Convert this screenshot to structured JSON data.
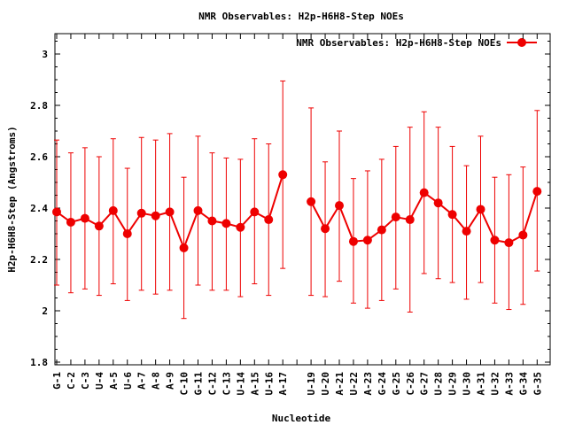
{
  "chart_data": {
    "type": "line",
    "title": "NMR Observables: H2p-H6H8-Step NOEs",
    "xlabel": "Nucleotide",
    "ylabel": "H2p-H6H8-Step (Angstroms)",
    "ylim": [
      1.8,
      3.05
    ],
    "yticks": [
      "1.8",
      "2",
      "2.2",
      "2.4",
      "2.6",
      "2.8",
      "3"
    ],
    "yticks_values": [
      1.8,
      2.0,
      2.2,
      2.4,
      2.6,
      2.8,
      3.0
    ],
    "legend": {
      "label": "NMR Observables: H2p-H6H8-Step NOEs",
      "placement": "top-right"
    },
    "grid": false,
    "series_color": "#ee0000",
    "categories": [
      "G-1",
      "C-2",
      "C-3",
      "U-4",
      "A-5",
      "U-6",
      "A-7",
      "A-8",
      "A-9",
      "C-10",
      "G-11",
      "C-12",
      "C-13",
      "U-14",
      "A-15",
      "U-16",
      "A-17",
      "",
      "U-19",
      "U-20",
      "A-21",
      "U-22",
      "A-23",
      "G-24",
      "G-25",
      "C-26",
      "G-27",
      "U-28",
      "U-29",
      "U-30",
      "A-31",
      "U-32",
      "A-33",
      "G-34",
      "G-35"
    ],
    "series": [
      {
        "name": "NMR Observables: H2p-H6H8-Step NOEs",
        "values": [
          2.385,
          2.345,
          2.36,
          2.33,
          2.39,
          2.3,
          2.38,
          2.37,
          2.385,
          2.245,
          2.39,
          2.35,
          2.34,
          2.325,
          2.385,
          2.355,
          2.53,
          null,
          2.425,
          2.32,
          2.41,
          2.27,
          2.275,
          2.315,
          2.365,
          2.355,
          2.46,
          2.42,
          2.375,
          2.31,
          2.395,
          2.275,
          2.265,
          2.295,
          2.465
        ],
        "err_low": [
          2.1,
          2.07,
          2.085,
          2.06,
          2.105,
          2.04,
          2.08,
          2.065,
          2.08,
          1.97,
          2.1,
          2.08,
          2.08,
          2.055,
          2.105,
          2.06,
          2.165,
          null,
          2.06,
          2.055,
          2.115,
          2.03,
          2.01,
          2.04,
          2.085,
          1.995,
          2.145,
          2.125,
          2.11,
          2.045,
          2.11,
          2.03,
          2.005,
          2.025,
          2.155
        ],
        "err_high": [
          2.665,
          2.615,
          2.635,
          2.6,
          2.67,
          2.555,
          2.675,
          2.665,
          2.69,
          2.52,
          2.68,
          2.615,
          2.595,
          2.59,
          2.67,
          2.65,
          2.895,
          null,
          2.79,
          2.58,
          2.7,
          2.515,
          2.545,
          2.59,
          2.64,
          2.715,
          2.775,
          2.715,
          2.64,
          2.565,
          2.68,
          2.52,
          2.53,
          2.56,
          2.78
        ]
      }
    ]
  }
}
